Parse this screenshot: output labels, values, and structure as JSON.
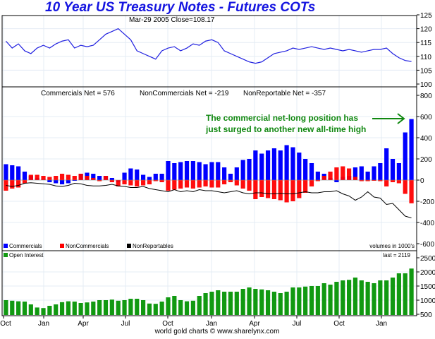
{
  "title": "10 Year US Treasury Notes - Futures COTs",
  "footer": "world gold charts © www.sharelynx.com",
  "colors": {
    "commercials": "#0000ff",
    "noncommercials": "#ff0000",
    "nonreportables": "#000000",
    "open_interest": "#119911",
    "price": "#2020e0",
    "annotation": "#118811"
  },
  "chart_data": [
    {
      "type": "line",
      "name": "price",
      "caption": "Mar-29  2005   Close=108.17",
      "yticks": [
        100,
        105,
        110,
        115,
        120,
        125
      ],
      "ylim": [
        100,
        125
      ],
      "values": [
        115.5,
        113,
        114.5,
        112,
        111,
        113,
        114,
        113,
        114.5,
        115.5,
        116,
        113,
        114,
        113.5,
        114,
        116,
        118,
        119,
        120,
        118,
        116,
        112,
        111,
        110,
        109,
        112,
        113,
        113.5,
        112,
        113,
        114.5,
        114,
        115.5,
        116,
        115,
        112,
        111,
        110,
        109,
        108,
        107.5,
        108,
        109.5,
        111,
        111.5,
        112,
        113,
        112.5,
        113,
        113.5,
        113,
        112.5,
        113,
        112.5,
        112,
        112.5,
        112,
        111.5,
        112,
        112.5,
        112.5,
        113,
        111,
        109.5,
        108.5,
        108.17
      ]
    },
    {
      "type": "bar",
      "name": "cot",
      "header": {
        "commercials": "Commercials Net = 576",
        "noncommercials": "NonCommercials Net = -219",
        "nonreportable": "NonReportable Net = -357"
      },
      "annotation": [
        "The commercial net-long position has",
        "just surged to another new all-time high"
      ],
      "legend": [
        "Commercials",
        "NonCommercials",
        "NonReportables"
      ],
      "units_note": "volumes in 1000's",
      "yticks": [
        -600,
        -400,
        -200,
        0,
        200,
        400,
        600,
        800
      ],
      "ylim": [
        -600,
        800
      ],
      "series": [
        {
          "name": "Commercials",
          "values": [
            150,
            140,
            130,
            80,
            40,
            20,
            10,
            -20,
            -30,
            -40,
            -30,
            0,
            60,
            70,
            60,
            40,
            40,
            20,
            -20,
            70,
            110,
            100,
            50,
            30,
            60,
            60,
            180,
            160,
            170,
            180,
            180,
            170,
            150,
            170,
            170,
            120,
            60,
            120,
            190,
            200,
            280,
            250,
            280,
            300,
            280,
            330,
            310,
            260,
            200,
            160,
            80,
            60,
            20,
            -20,
            30,
            40,
            120,
            130,
            80,
            130,
            160,
            300,
            200,
            160,
            450,
            576
          ]
        },
        {
          "name": "NonCommercials",
          "values": [
            -100,
            -80,
            -70,
            -30,
            50,
            50,
            40,
            30,
            40,
            60,
            50,
            40,
            60,
            40,
            20,
            -10,
            40,
            -20,
            -60,
            -40,
            -50,
            -60,
            -50,
            -40,
            -10,
            -20,
            -100,
            -90,
            -80,
            -70,
            -80,
            -70,
            -60,
            -70,
            -70,
            -40,
            -20,
            -50,
            -80,
            -100,
            -180,
            -160,
            -170,
            -180,
            -190,
            -210,
            -200,
            -170,
            -120,
            -60,
            -10,
            40,
            80,
            120,
            130,
            110,
            30,
            -10,
            -10,
            0,
            -10,
            -60,
            -20,
            -30,
            -130,
            -219
          ]
        },
        {
          "name": "NonReportables",
          "values": [
            -50,
            -60,
            -50,
            -30,
            -25,
            -30,
            -35,
            -40,
            -55,
            -60,
            -50,
            -30,
            -35,
            -50,
            -55,
            -55,
            -50,
            -40,
            -55,
            -60,
            -70,
            -70,
            -60,
            -80,
            -90,
            -100,
            -110,
            -90,
            -110,
            -100,
            -110,
            -90,
            -100,
            -100,
            -110,
            -120,
            -110,
            -100,
            -120,
            -130,
            -120,
            -120,
            -130,
            -130,
            -125,
            -130,
            -130,
            -120,
            -110,
            -120,
            -120,
            -110,
            -110,
            -100,
            -130,
            -150,
            -190,
            -160,
            -110,
            -160,
            -170,
            -230,
            -220,
            -280,
            -340,
            -357
          ]
        }
      ]
    },
    {
      "type": "bar",
      "name": "open_interest",
      "legend": [
        "Open Interest"
      ],
      "last_label": "last = 2119",
      "yticks": [
        500,
        1000,
        1500,
        2000,
        2500
      ],
      "ylim": [
        500,
        2500
      ],
      "values": [
        1000,
        980,
        960,
        950,
        850,
        740,
        720,
        800,
        850,
        930,
        960,
        950,
        900,
        920,
        950,
        1000,
        1000,
        1020,
        980,
        1000,
        1050,
        1050,
        1000,
        880,
        870,
        950,
        1100,
        1150,
        1000,
        960,
        980,
        1150,
        1250,
        1300,
        1350,
        1300,
        1300,
        1300,
        1400,
        1450,
        1400,
        1380,
        1350,
        1300,
        1250,
        1300,
        1450,
        1450,
        1480,
        1500,
        1500,
        1600,
        1550,
        1650,
        1700,
        1720,
        1800,
        1700,
        1650,
        1600,
        1700,
        1700,
        1800,
        1950,
        1950,
        2119
      ]
    }
  ],
  "x_ticks": [
    "Oct",
    "Jan",
    "Apr",
    "Jul",
    "Oct",
    "Jan",
    "Apr",
    "Jul",
    "Oct",
    "Jan"
  ]
}
